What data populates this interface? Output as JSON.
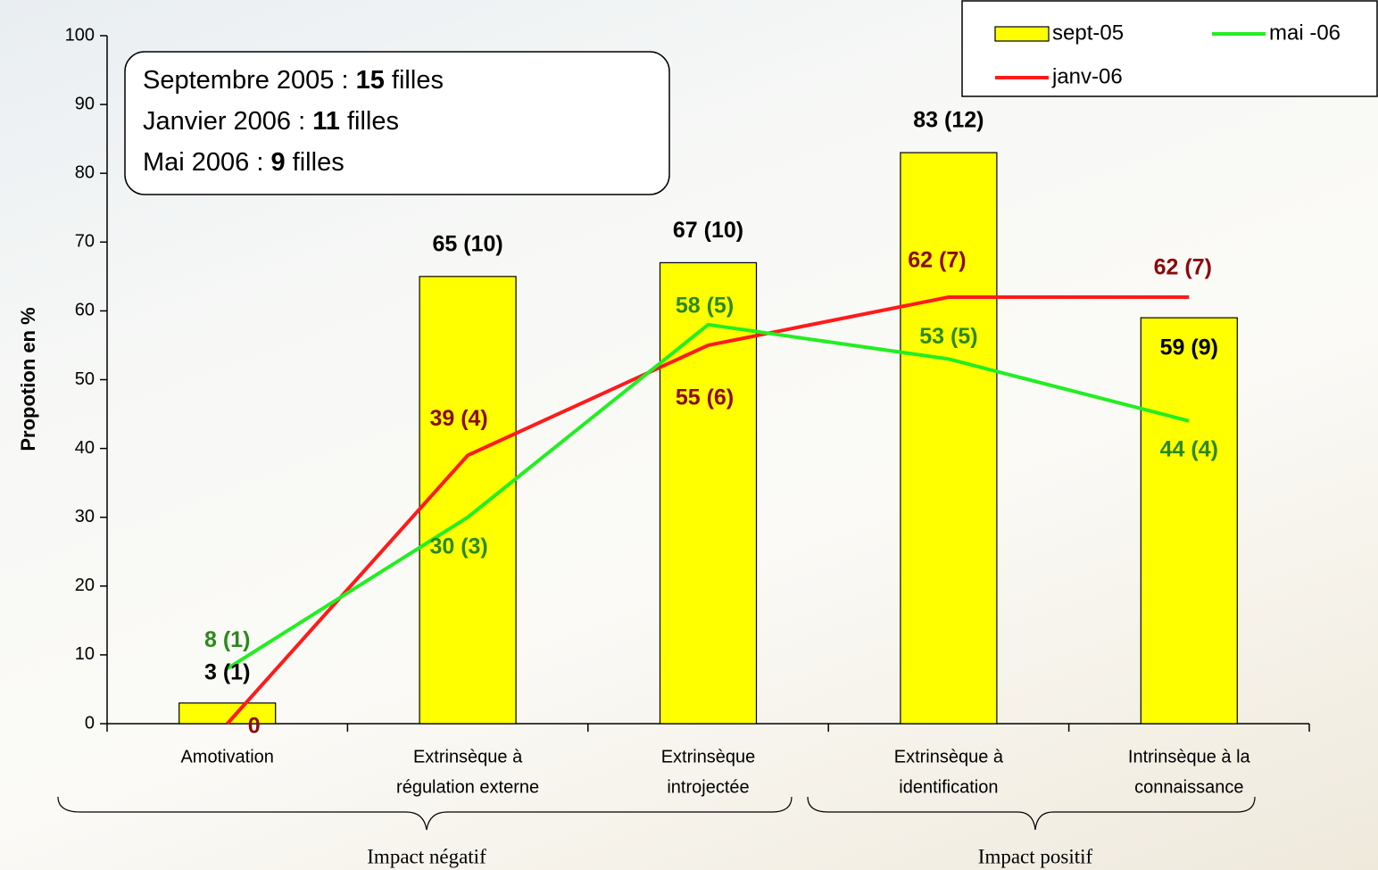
{
  "chart_data": {
    "type": "bar",
    "y_label": "Propotion en %",
    "categories": [
      [
        "Amotivation"
      ],
      [
        "Extrinsèque à",
        "régulation externe"
      ],
      [
        "Extrinsèque",
        "introjectée"
      ],
      [
        "Extrinsèque à",
        "identification"
      ],
      [
        "Intrinsèque à la",
        "connaissance"
      ]
    ],
    "series": [
      {
        "name": "sept-05",
        "type": "bar",
        "color": "#ffff00",
        "label_color": "#000000",
        "values": [
          3,
          65,
          67,
          83,
          59
        ],
        "value_labels": [
          "3 (1)",
          "65 (10)",
          "67 (10)",
          "83 (12)",
          "59 (9)"
        ]
      },
      {
        "name": "janv-06",
        "type": "line",
        "color": "#ff1a1a",
        "label_color": "#8b0a0a",
        "values": [
          0,
          39,
          55,
          62,
          62
        ],
        "value_labels": [
          "0",
          "39 (4)",
          "55 (6)",
          "62 (7)",
          "62 (7)"
        ]
      },
      {
        "name": "mai -06",
        "type": "line",
        "color": "#22ee22",
        "label_color": "#2a8a1a",
        "values": [
          8,
          30,
          58,
          53,
          44
        ],
        "value_labels": [
          "8 (1)",
          "30 (3)",
          "58 (5)",
          "53 (5)",
          "44 (4)"
        ]
      }
    ],
    "ylim": [
      0,
      100
    ],
    "yticks": [
      0,
      10,
      20,
      30,
      40,
      50,
      60,
      70,
      80,
      90,
      100
    ],
    "annotation": [
      [
        "Septembre 2005 : ",
        "15",
        " filles"
      ],
      [
        "Janvier 2006 : ",
        "11",
        " filles"
      ],
      [
        "Mai 2006 : ",
        "9",
        " filles"
      ]
    ],
    "groups": [
      "Impact négatif",
      "Impact positif"
    ],
    "legend": "top-right"
  }
}
